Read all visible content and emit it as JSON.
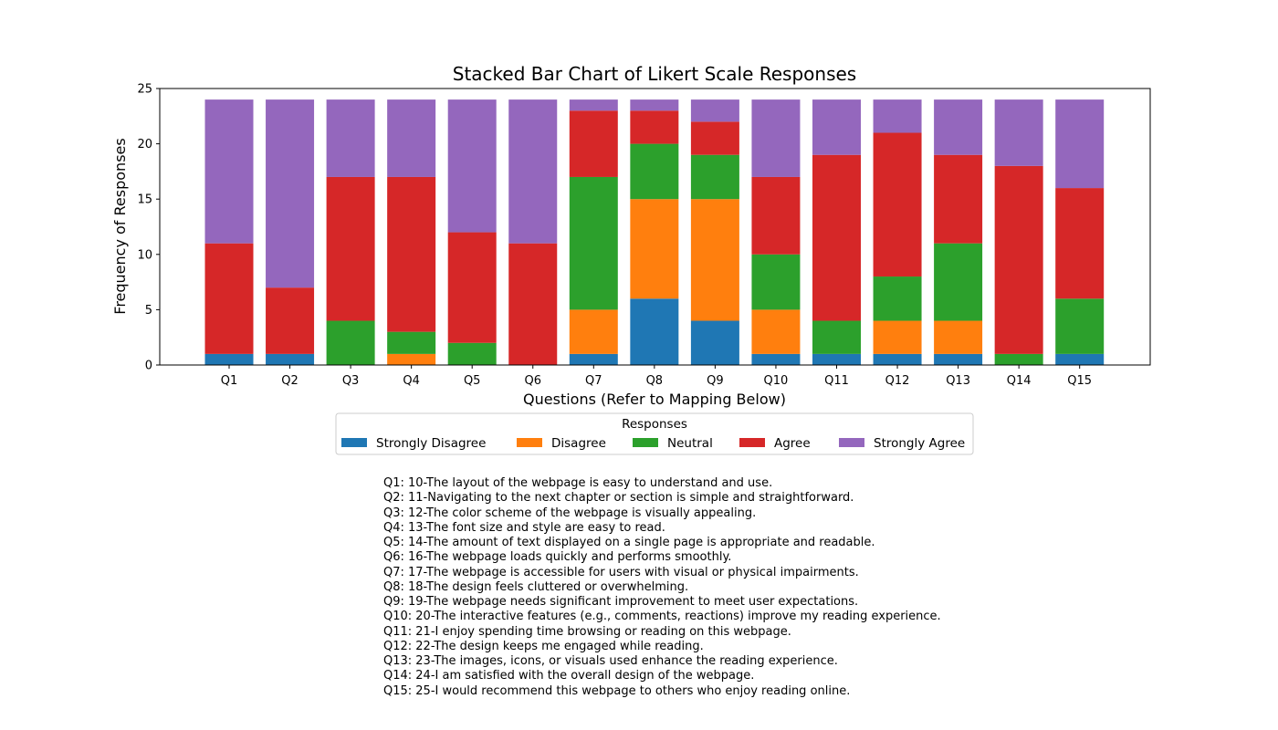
{
  "chart_data": {
    "type": "bar",
    "stacked": true,
    "title": "Stacked Bar Chart of Likert Scale Responses",
    "xlabel": "Questions (Refer to Mapping Below)",
    "ylabel": "Frequency of Responses",
    "ylim": [
      0,
      25
    ],
    "yticks": [
      0,
      5,
      10,
      15,
      20,
      25
    ],
    "grid": false,
    "categories": [
      "Q1",
      "Q2",
      "Q3",
      "Q4",
      "Q5",
      "Q6",
      "Q7",
      "Q8",
      "Q9",
      "Q10",
      "Q11",
      "Q12",
      "Q13",
      "Q14",
      "Q15"
    ],
    "legend": {
      "title": "Responses",
      "placement": "bottom-center"
    },
    "series": [
      {
        "name": "Strongly Disagree",
        "color": "#1f77b4",
        "values": [
          1,
          1,
          0,
          0,
          0,
          0,
          1,
          6,
          4,
          1,
          1,
          1,
          1,
          0,
          1
        ]
      },
      {
        "name": "Disagree",
        "color": "#ff7f0e",
        "values": [
          0,
          0,
          0,
          1,
          0,
          0,
          4,
          9,
          11,
          4,
          0,
          3,
          3,
          0,
          0
        ]
      },
      {
        "name": "Neutral",
        "color": "#2ca02c",
        "values": [
          0,
          0,
          4,
          2,
          2,
          0,
          12,
          5,
          4,
          5,
          3,
          4,
          7,
          1,
          5
        ]
      },
      {
        "name": "Agree",
        "color": "#d62728",
        "values": [
          10,
          6,
          13,
          14,
          10,
          11,
          6,
          3,
          3,
          7,
          15,
          13,
          8,
          17,
          10
        ]
      },
      {
        "name": "Strongly Agree",
        "color": "#9467bd",
        "values": [
          13,
          17,
          7,
          7,
          12,
          13,
          1,
          1,
          2,
          7,
          5,
          3,
          5,
          6,
          8
        ]
      }
    ]
  },
  "mapping": [
    "Q1: 10-The layout of the webpage is easy to understand and use.",
    "Q2: 11-Navigating to the next chapter or section is simple and straightforward.",
    "Q3: 12-The color scheme of the webpage is visually appealing.",
    "Q4: 13-The font size and style are easy to read.",
    "Q5: 14-The amount of text displayed on a single page is appropriate and readable.",
    "Q6: 16-The webpage loads quickly and performs smoothly.",
    "Q7: 17-The webpage is accessible for users with visual or physical impairments.",
    "Q8: 18-The design feels cluttered or overwhelming.",
    "Q9: 19-The webpage needs significant improvement to meet user expectations.",
    "Q10: 20-The interactive features (e.g., comments, reactions) improve my reading experience.",
    "Q11: 21-I enjoy spending time browsing or reading on this webpage.",
    "Q12: 22-The design keeps me engaged while reading.",
    "Q13: 23-The images, icons, or visuals used enhance the reading experience.",
    "Q14: 24-I am satisfied with the overall design of the webpage.",
    "Q15: 25-I would recommend this webpage to others who enjoy reading online."
  ]
}
